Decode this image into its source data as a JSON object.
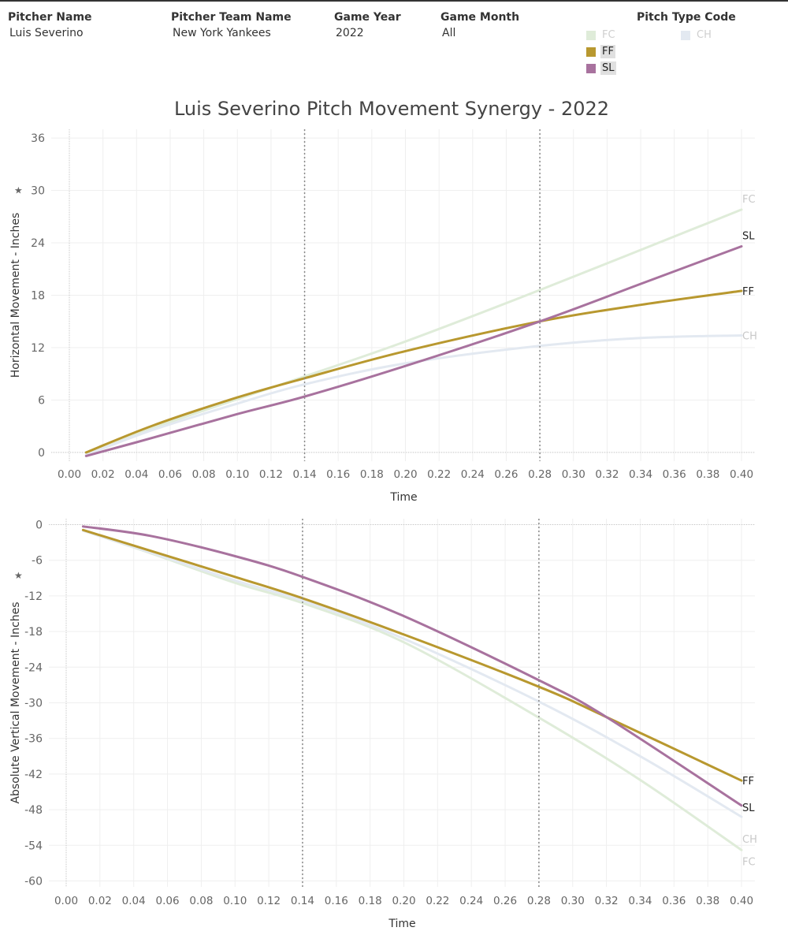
{
  "filters": [
    {
      "label": "Pitcher Name",
      "value": "Luis Severino"
    },
    {
      "label": "Pitcher Team Name",
      "value": "New York Yankees"
    },
    {
      "label": "Game Year",
      "value": "2022"
    },
    {
      "label": "Game Month",
      "value": "All"
    }
  ],
  "legend": {
    "title": "Pitch Type Code",
    "items": [
      {
        "code": "FC",
        "color": "#dfecd9",
        "state": "dimmed"
      },
      {
        "code": "CH",
        "color": "#e3e9f1",
        "state": "dimmed"
      },
      {
        "code": "FF",
        "color": "#b8982f",
        "state": "selected"
      },
      {
        "code": "SL",
        "color": "#a8729e",
        "state": "selected"
      }
    ]
  },
  "title": "Luis Severino Pitch Movement Synergy - 2022",
  "chart_data": [
    {
      "type": "line",
      "xlabel": "Time",
      "ylabel": "Horizontal Movement - Inches",
      "xlim": [
        0,
        0.4
      ],
      "ylim": [
        -1,
        37
      ],
      "xticks": [
        "0.00",
        "0.02",
        "0.04",
        "0.06",
        "0.08",
        "0.10",
        "0.12",
        "0.14",
        "0.16",
        "0.18",
        "0.20",
        "0.22",
        "0.24",
        "0.26",
        "0.28",
        "0.30",
        "0.32",
        "0.34",
        "0.36",
        "0.38",
        "0.40"
      ],
      "yticks": [
        "36",
        "30",
        "24",
        "18",
        "12",
        "6",
        "0"
      ],
      "reference_lines_x": [
        0.14,
        0.28
      ],
      "grid": true,
      "series": [
        {
          "name": "FC",
          "color": "#dfecd9",
          "x": [
            0.01,
            0.05,
            0.1,
            0.14,
            0.2,
            0.28,
            0.4
          ],
          "y": [
            -0.3,
            2.8,
            6.1,
            8.7,
            12.7,
            18.6,
            27.8
          ]
        },
        {
          "name": "CH",
          "color": "#e3e9f1",
          "x": [
            0.01,
            0.05,
            0.1,
            0.14,
            0.2,
            0.28,
            0.34,
            0.4
          ],
          "y": [
            -0.3,
            2.6,
            5.6,
            7.8,
            10.2,
            12.2,
            13.1,
            13.4
          ]
        },
        {
          "name": "FF",
          "color": "#b8982f",
          "x": [
            0.01,
            0.05,
            0.1,
            0.14,
            0.2,
            0.28,
            0.34,
            0.4
          ],
          "y": [
            0,
            3.1,
            6.3,
            8.5,
            11.6,
            15.0,
            16.9,
            18.5
          ]
        },
        {
          "name": "SL",
          "color": "#a8729e",
          "x": [
            0.01,
            0.05,
            0.1,
            0.14,
            0.2,
            0.28,
            0.34,
            0.4
          ],
          "y": [
            -0.4,
            1.7,
            4.4,
            6.4,
            9.9,
            15.0,
            19.3,
            23.6
          ]
        }
      ]
    },
    {
      "type": "line",
      "xlabel": "Time",
      "ylabel": "Absolute Vertical Movement - Inches",
      "xlim": [
        0,
        0.4
      ],
      "ylim": [
        -61,
        1
      ],
      "xticks": [
        "0.00",
        "0.02",
        "0.04",
        "0.06",
        "0.08",
        "0.10",
        "0.12",
        "0.14",
        "0.16",
        "0.18",
        "0.20",
        "0.22",
        "0.24",
        "0.26",
        "0.28",
        "0.30",
        "0.32",
        "0.34",
        "0.36",
        "0.38",
        "0.40"
      ],
      "yticks": [
        "0",
        "-6",
        "-12",
        "-18",
        "-24",
        "-30",
        "-36",
        "-42",
        "-48",
        "-54",
        "-60"
      ],
      "reference_lines_x": [
        0.14,
        0.28
      ],
      "grid": true,
      "series": [
        {
          "name": "FC",
          "color": "#dfecd9",
          "x": [
            0.01,
            0.05,
            0.1,
            0.14,
            0.2,
            0.28,
            0.34,
            0.4
          ],
          "y": [
            -1.0,
            -4.8,
            -9.8,
            -13.2,
            -19.8,
            -32.5,
            -43.0,
            -54.8
          ]
        },
        {
          "name": "CH",
          "color": "#e3e9f1",
          "x": [
            0.01,
            0.05,
            0.1,
            0.14,
            0.2,
            0.28,
            0.34,
            0.4
          ],
          "y": [
            -1.0,
            -4.7,
            -9.4,
            -12.8,
            -19.2,
            -29.8,
            -39.0,
            -49.2
          ]
        },
        {
          "name": "FF",
          "color": "#b8982f",
          "x": [
            0.01,
            0.05,
            0.1,
            0.14,
            0.2,
            0.28,
            0.32,
            0.4
          ],
          "y": [
            -0.9,
            -4.4,
            -8.8,
            -12.4,
            -18.5,
            -27.3,
            -32.4,
            -43.1
          ]
        },
        {
          "name": "SL",
          "color": "#a8729e",
          "x": [
            0.01,
            0.05,
            0.1,
            0.14,
            0.2,
            0.28,
            0.32,
            0.4
          ],
          "y": [
            -0.3,
            -1.9,
            -5.3,
            -8.8,
            -15.4,
            -26.2,
            -32.4,
            -47.3
          ]
        }
      ]
    }
  ]
}
